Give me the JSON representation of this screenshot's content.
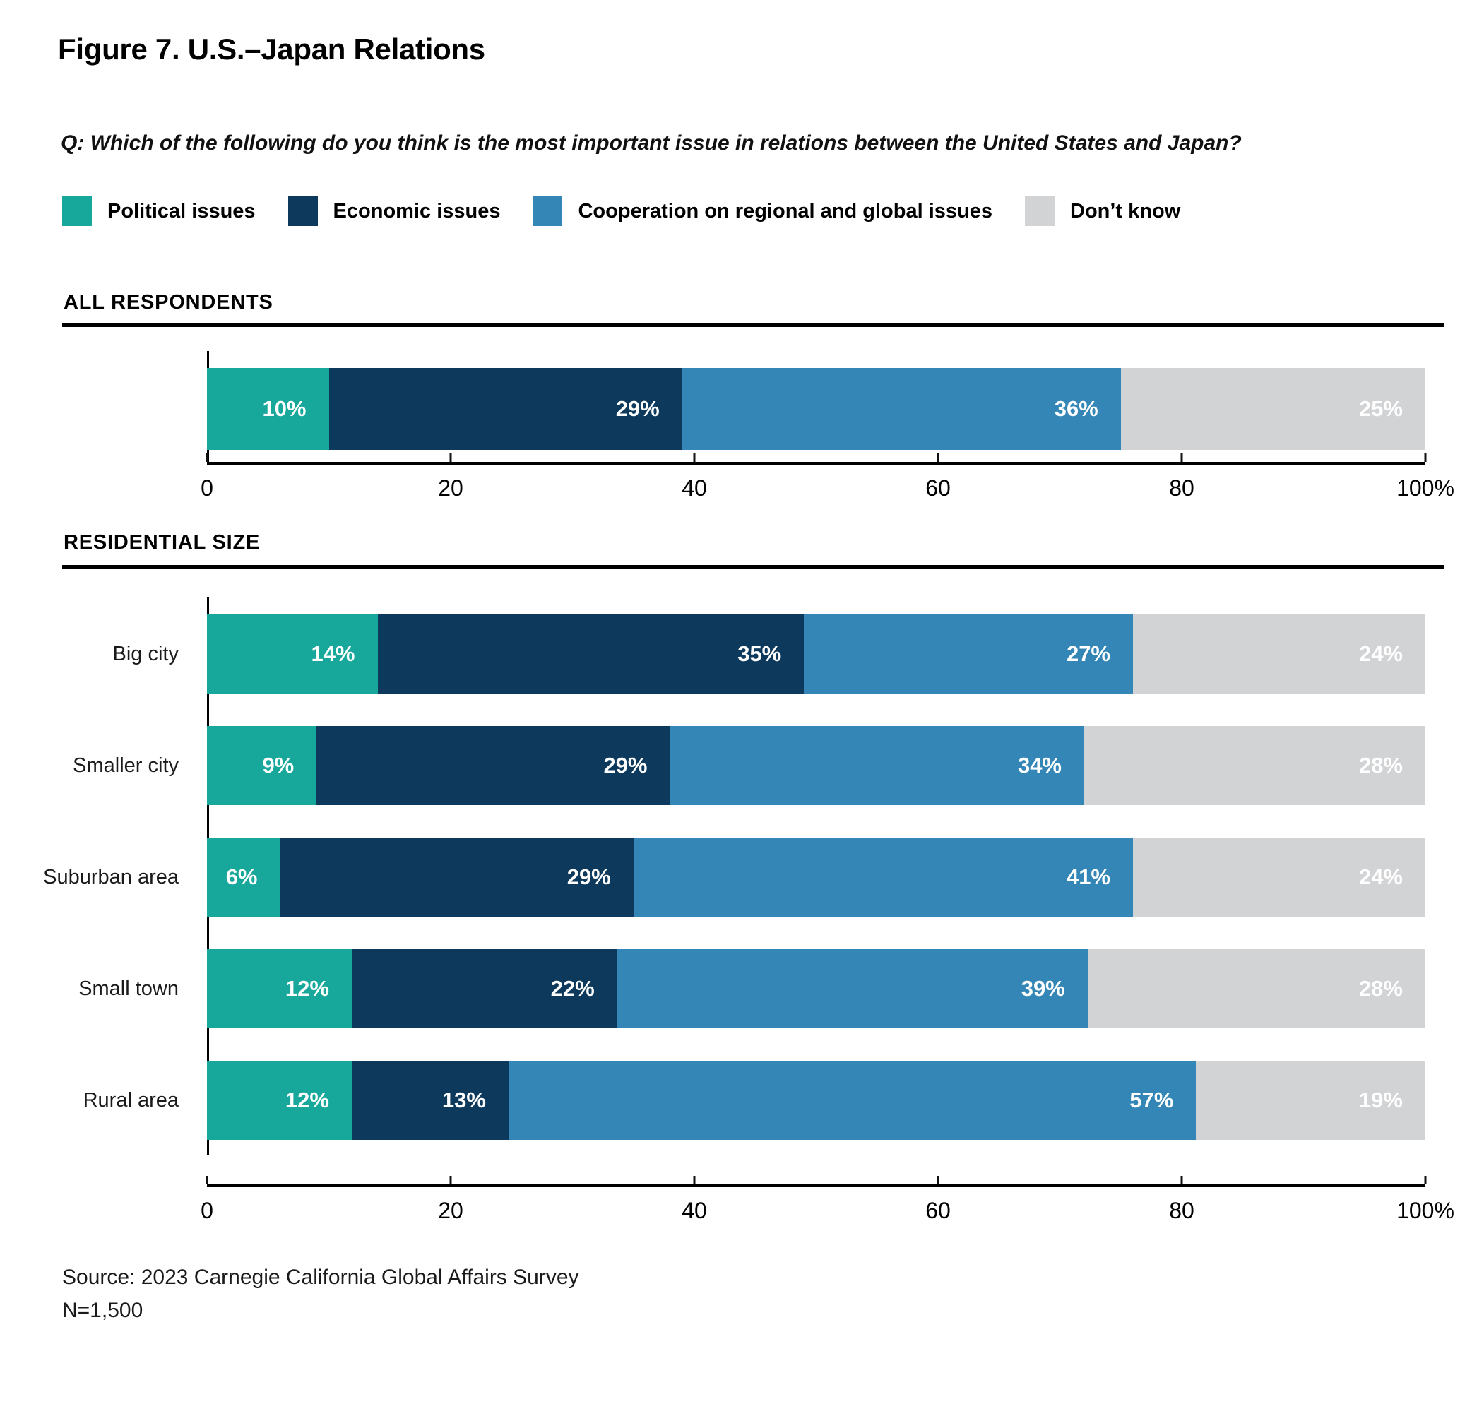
{
  "title": "Figure 7. U.S.–Japan Relations",
  "question": "Q: Which of the following do you think is the most important issue in relations between the United States and Japan?",
  "legend": {
    "items": [
      {
        "label": "Political issues",
        "color": "#17A79B"
      },
      {
        "label": "Economic issues",
        "color": "#0D3A5C"
      },
      {
        "label": "Cooperation on regional and global issues",
        "color": "#3386B5"
      },
      {
        "label": "Don’t know",
        "color": "#D2D3D5"
      }
    ]
  },
  "sections": [
    {
      "heading": "ALL RESPONDENTS"
    },
    {
      "heading": "RESIDENTIAL SIZE"
    }
  ],
  "axis": {
    "tick_labels": [
      "0",
      "20",
      "40",
      "60",
      "80",
      "100%"
    ],
    "positions": [
      0,
      20,
      40,
      60,
      80,
      100
    ]
  },
  "source": "Source: 2023 Carnegie California Global Affairs Survey",
  "sample_size": "N=1,500",
  "colors": {
    "political": "#17A79B",
    "economic": "#0D3A5C",
    "cooperation": "#3386B5",
    "dont_know": "#D2D3D5",
    "axis": "#000000"
  },
  "chart_data": [
    {
      "type": "bar",
      "stacked": true,
      "orientation": "horizontal",
      "title": "ALL RESPONDENTS",
      "categories": [
        "All respondents"
      ],
      "category_labels_visible": false,
      "series": [
        {
          "name": "Political issues",
          "color": "#17A79B",
          "values": [
            10
          ]
        },
        {
          "name": "Economic issues",
          "color": "#0D3A5C",
          "values": [
            29
          ]
        },
        {
          "name": "Cooperation on regional and global issues",
          "color": "#3386B5",
          "values": [
            36
          ]
        },
        {
          "name": "Don’t know",
          "color": "#D2D3D5",
          "values": [
            25
          ]
        }
      ],
      "value_suffix": "%",
      "xlim": [
        0,
        100
      ],
      "x_ticks": [
        "0",
        "20",
        "40",
        "60",
        "80",
        "100%"
      ],
      "grid": false,
      "legend_position": "top"
    },
    {
      "type": "bar",
      "stacked": true,
      "orientation": "horizontal",
      "title": "RESIDENTIAL SIZE",
      "categories": [
        "Big city",
        "Smaller city",
        "Suburban area",
        "Small town",
        "Rural area"
      ],
      "category_labels_visible": true,
      "series": [
        {
          "name": "Political issues",
          "color": "#17A79B",
          "values": [
            14,
            9,
            6,
            12,
            12
          ]
        },
        {
          "name": "Economic issues",
          "color": "#0D3A5C",
          "values": [
            35,
            29,
            29,
            22,
            13
          ]
        },
        {
          "name": "Cooperation on regional and global issues",
          "color": "#3386B5",
          "values": [
            27,
            34,
            41,
            39,
            57
          ]
        },
        {
          "name": "Don’t know",
          "color": "#D2D3D5",
          "values": [
            24,
            28,
            24,
            28,
            19
          ]
        }
      ],
      "value_suffix": "%",
      "xlim": [
        0,
        100
      ],
      "x_ticks": [
        "0",
        "20",
        "40",
        "60",
        "80",
        "100%"
      ],
      "grid": false,
      "legend_position": "top"
    }
  ]
}
